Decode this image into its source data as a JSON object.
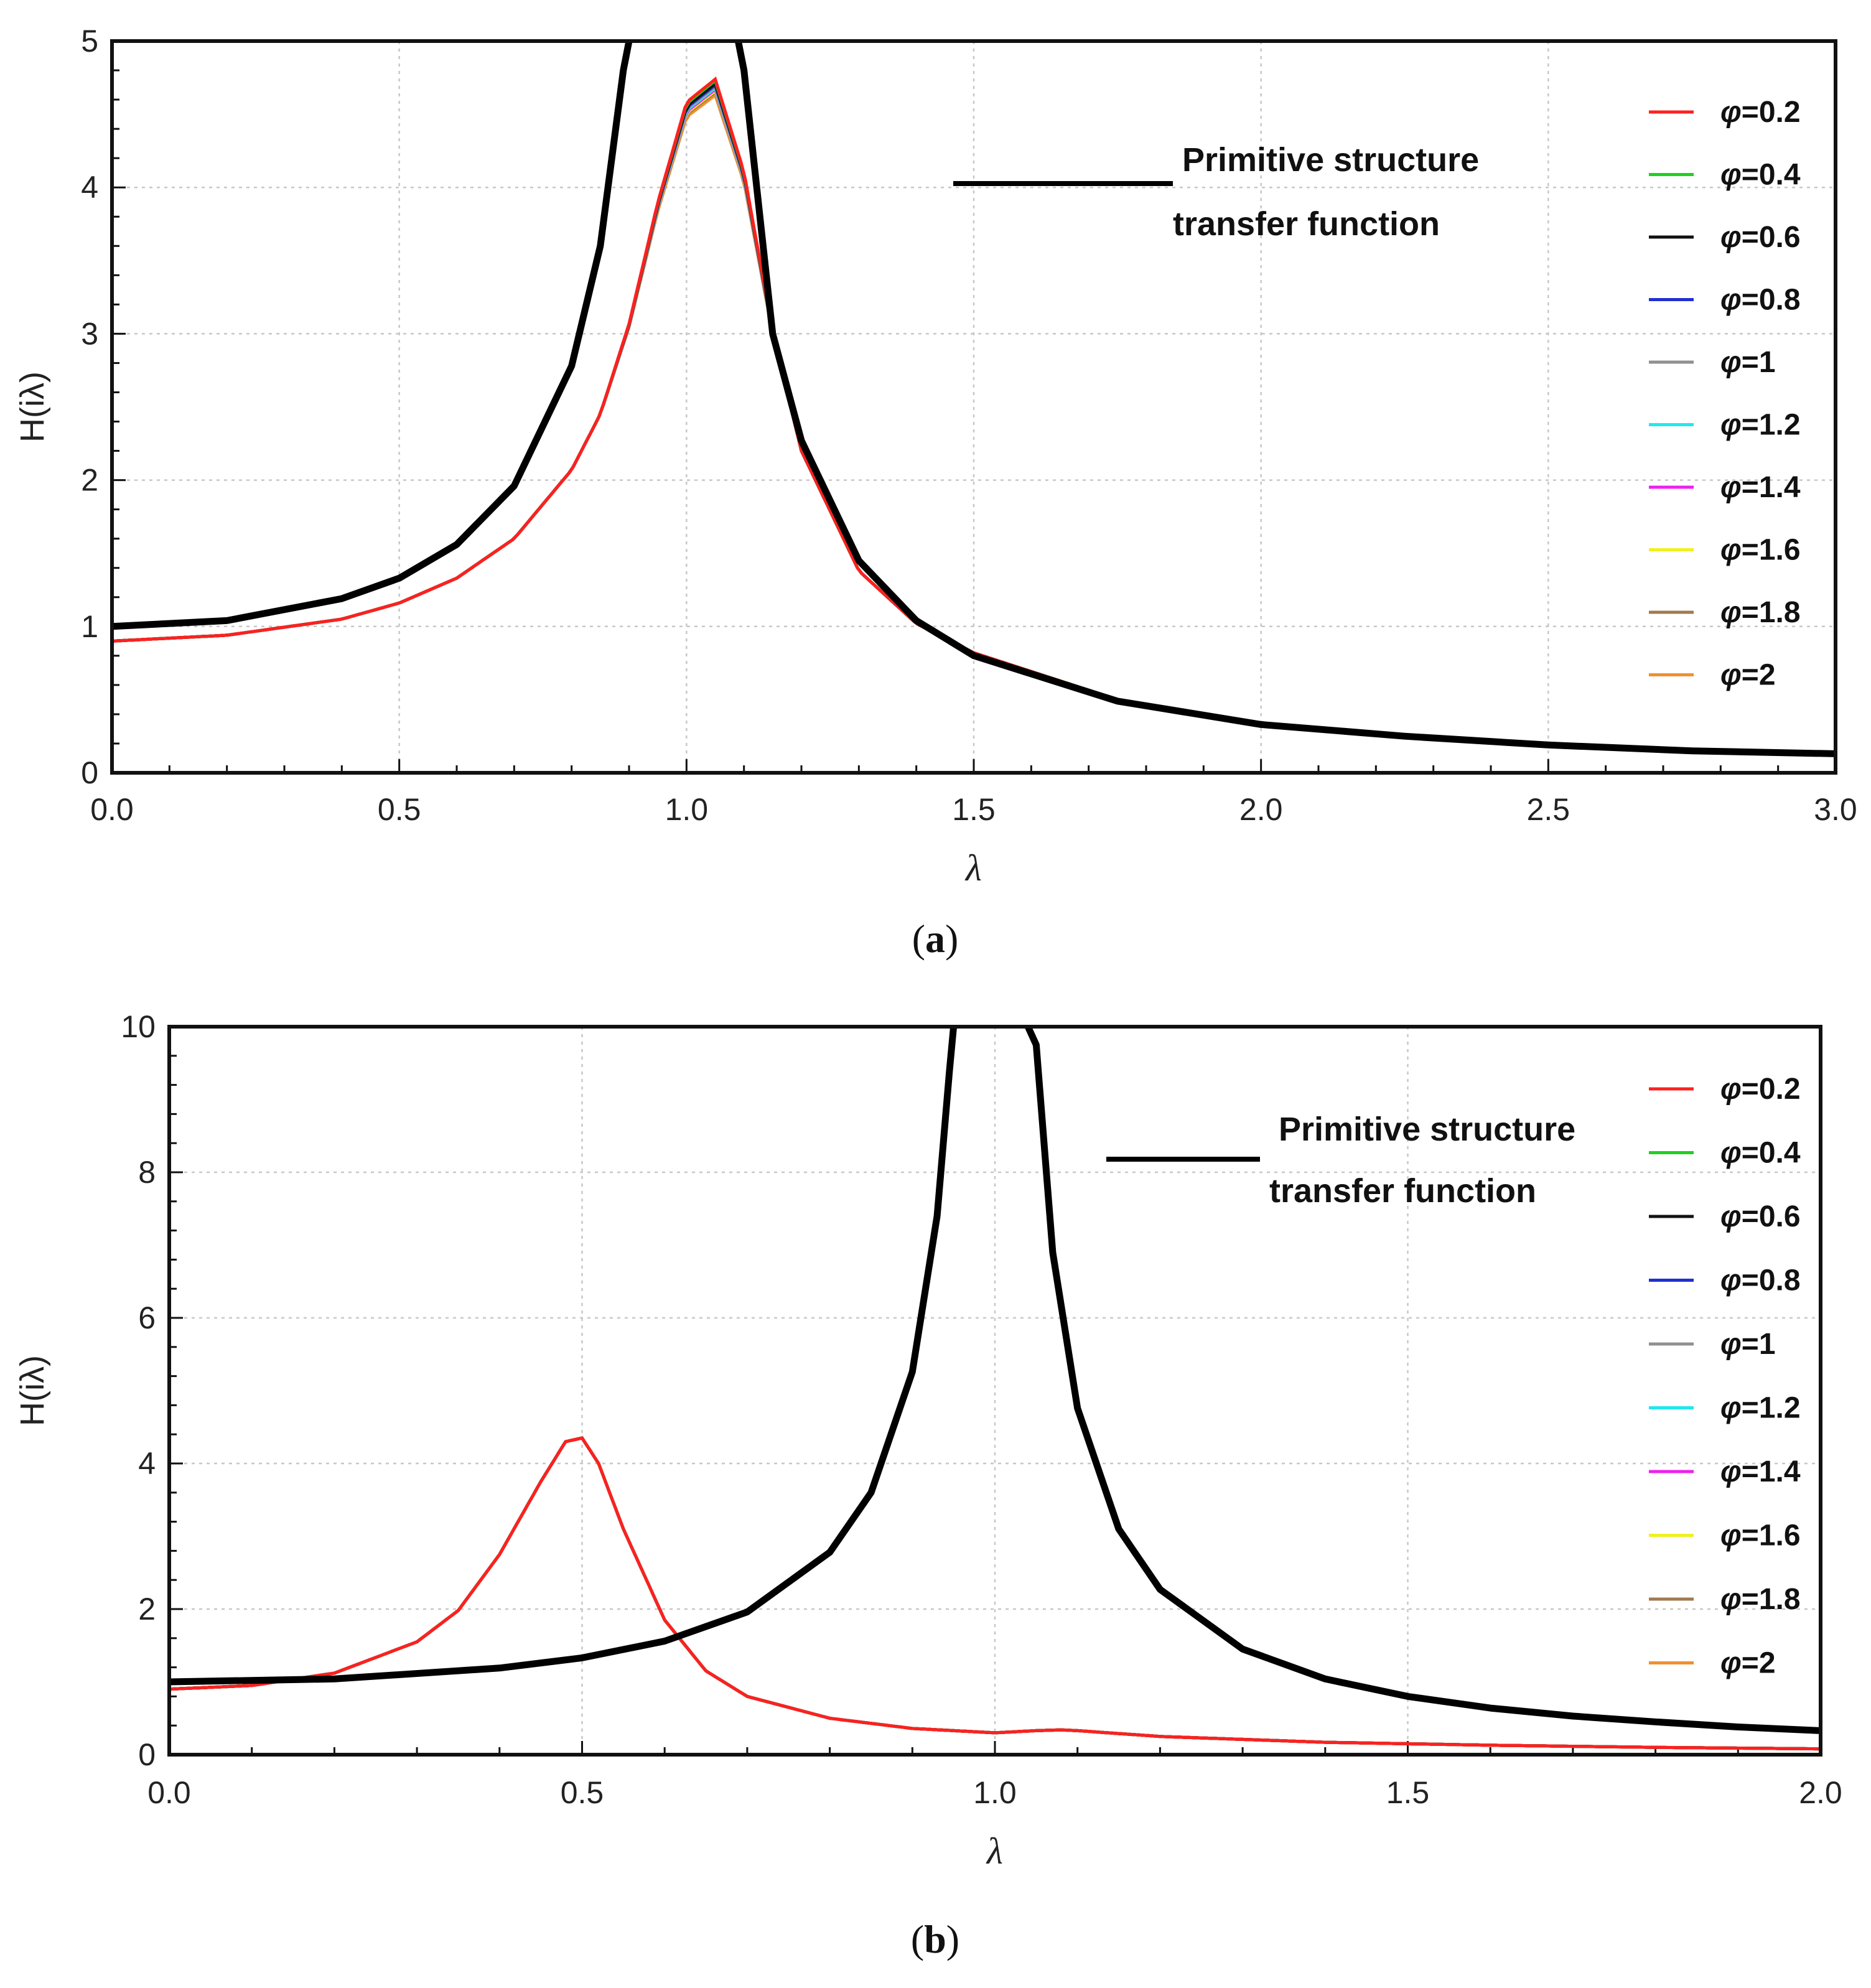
{
  "figure": {
    "panels": [
      "(a)",
      "(b)"
    ],
    "panel_letters": [
      "a",
      "b"
    ]
  },
  "chart_data": [
    {
      "id": "a",
      "type": "line",
      "title": "",
      "panel_label": "(a)",
      "xlabel": "λ",
      "ylabel": "H(iλ)",
      "xlim": [
        0,
        3
      ],
      "ylim": [
        0,
        5
      ],
      "xticks": [
        "0.0",
        "0.5",
        "1.0",
        "1.5",
        "2.0",
        "2.5",
        "3.0"
      ],
      "xtick_values": [
        0,
        0.5,
        1,
        1.5,
        2,
        2.5,
        3
      ],
      "yticks": [
        "0",
        "1",
        "2",
        "3",
        "4",
        "5"
      ],
      "ytick_values": [
        0,
        1,
        2,
        3,
        4,
        5
      ],
      "grid": true,
      "legend_position": "right",
      "annotation": [
        "Primitive structure",
        "transfer function"
      ],
      "primitive_series": {
        "name": "Primitive structure transfer function",
        "color": "#000000",
        "x": [
          0,
          0.2,
          0.4,
          0.5,
          0.6,
          0.7,
          0.8,
          0.85,
          0.89,
          0.9,
          1.09,
          1.1,
          1.15,
          1.2,
          1.3,
          1.4,
          1.5,
          1.75,
          2.0,
          2.25,
          2.5,
          2.75,
          3.0
        ],
        "y": [
          1.0,
          1.04,
          1.19,
          1.33,
          1.56,
          1.96,
          2.78,
          3.6,
          4.8,
          5.0,
          5.0,
          4.8,
          3.0,
          2.27,
          1.45,
          1.04,
          0.8,
          0.49,
          0.33,
          0.25,
          0.19,
          0.15,
          0.13
        ]
      },
      "series": [
        {
          "name": "φ=0.2",
          "color": "#ff2020",
          "peak": 4.74
        },
        {
          "name": "φ=0.4",
          "color": "#20d020",
          "peak": 4.73
        },
        {
          "name": "φ=0.6",
          "color": "#111111",
          "peak": 4.71
        },
        {
          "name": "φ=0.8",
          "color": "#2030d0",
          "peak": 4.7
        },
        {
          "name": "φ=1",
          "color": "#909090",
          "peak": 4.69
        },
        {
          "name": "φ=1.2",
          "color": "#20e8f0",
          "peak": 4.68
        },
        {
          "name": "φ=1.4",
          "color": "#ee20ee",
          "peak": 4.67
        },
        {
          "name": "φ=1.6",
          "color": "#f0f020",
          "peak": 4.66
        },
        {
          "name": "φ=1.8",
          "color": "#a07a50",
          "peak": 4.65
        },
        {
          "name": "φ=2",
          "color": "#f09030",
          "peak": 4.63
        }
      ],
      "damped_curve": {
        "x": [
          0,
          0.2,
          0.4,
          0.5,
          0.6,
          0.7,
          0.8,
          0.85,
          0.9,
          0.95,
          1.0,
          1.05,
          1.1,
          1.15,
          1.2,
          1.3,
          1.4,
          1.5,
          1.75,
          2.0,
          2.25,
          2.5,
          2.75,
          3.0
        ],
        "y": [
          0.9,
          0.94,
          1.05,
          1.16,
          1.33,
          1.6,
          2.07,
          2.45,
          3.05,
          3.85,
          4.5,
          4.65,
          4.05,
          3.0,
          2.2,
          1.38,
          1.02,
          0.82,
          0.5,
          0.34,
          0.25,
          0.2,
          0.16,
          0.13
        ]
      }
    },
    {
      "id": "b",
      "type": "line",
      "title": "",
      "panel_label": "(b)",
      "xlabel": "λ",
      "ylabel": "H(iλ)",
      "xlim": [
        0,
        2
      ],
      "ylim": [
        0,
        10
      ],
      "xticks": [
        "0.0",
        "0.5",
        "1.0",
        "1.5",
        "2.0"
      ],
      "xtick_values": [
        0,
        0.5,
        1,
        1.5,
        2
      ],
      "yticks": [
        "0",
        "2",
        "4",
        "6",
        "8",
        "10"
      ],
      "ytick_values": [
        0,
        2,
        4,
        6,
        8,
        10
      ],
      "grid": true,
      "legend_position": "right",
      "annotation": [
        "Primitive structure",
        "transfer function"
      ],
      "primitive_series": {
        "name": "Primitive structure transfer function",
        "color": "#000000",
        "x": [
          0,
          0.2,
          0.4,
          0.5,
          0.6,
          0.7,
          0.8,
          0.85,
          0.9,
          0.93,
          0.945,
          0.95,
          1.04,
          1.05,
          1.07,
          1.1,
          1.15,
          1.2,
          1.3,
          1.4,
          1.5,
          1.6,
          1.7,
          1.8,
          1.9,
          2.0
        ],
        "y": [
          1.0,
          1.04,
          1.19,
          1.33,
          1.56,
          1.96,
          2.78,
          3.6,
          5.26,
          7.4,
          9.4,
          10.0,
          10.0,
          9.75,
          6.9,
          4.76,
          3.1,
          2.27,
          1.45,
          1.04,
          0.8,
          0.64,
          0.53,
          0.45,
          0.38,
          0.33
        ]
      },
      "series": [
        {
          "name": "φ=0.2",
          "color": "#ff2020"
        },
        {
          "name": "φ=0.4",
          "color": "#20d020"
        },
        {
          "name": "φ=0.6",
          "color": "#111111"
        },
        {
          "name": "φ=0.8",
          "color": "#2030d0"
        },
        {
          "name": "φ=1",
          "color": "#909090"
        },
        {
          "name": "φ=1.2",
          "color": "#20e8f0"
        },
        {
          "name": "φ=1.4",
          "color": "#ee20ee"
        },
        {
          "name": "φ=1.6",
          "color": "#f0f020"
        },
        {
          "name": "φ=1.8",
          "color": "#a07a50"
        },
        {
          "name": "φ=2",
          "color": "#f09030"
        }
      ],
      "damped_curve": {
        "x": [
          0,
          0.1,
          0.2,
          0.3,
          0.35,
          0.4,
          0.45,
          0.48,
          0.5,
          0.52,
          0.55,
          0.6,
          0.65,
          0.7,
          0.8,
          0.9,
          1.0,
          1.05,
          1.08,
          1.1,
          1.2,
          1.4,
          1.6,
          1.8,
          2.0
        ],
        "y": [
          0.9,
          0.95,
          1.12,
          1.55,
          1.98,
          2.75,
          3.75,
          4.3,
          4.35,
          4.0,
          3.1,
          1.85,
          1.15,
          0.8,
          0.5,
          0.36,
          0.3,
          0.33,
          0.34,
          0.33,
          0.25,
          0.17,
          0.13,
          0.1,
          0.08
        ]
      }
    }
  ]
}
